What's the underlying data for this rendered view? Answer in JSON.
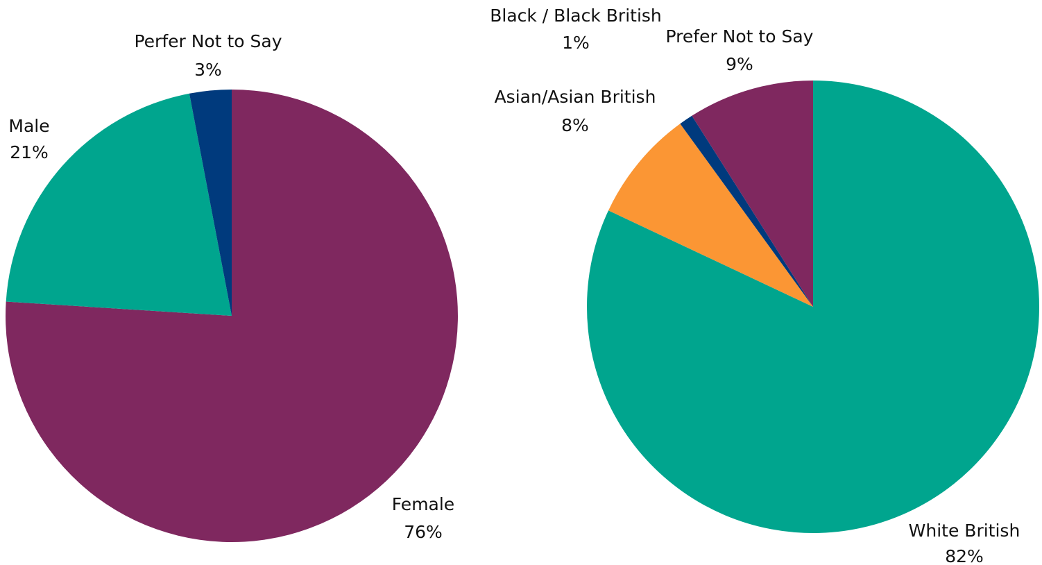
{
  "chart_data": [
    {
      "type": "pie",
      "slices": [
        {
          "label": "Female",
          "value": 76,
          "display": "76%",
          "color": "#7f285f"
        },
        {
          "label": "Male",
          "value": 21,
          "display": "21%",
          "color": "#00a58e"
        },
        {
          "label": "Perfer Not to Say",
          "value": 3,
          "display": "3%",
          "color": "#003a7d"
        }
      ],
      "start_angle": "12 o'clock",
      "direction": "clockwise",
      "legend": "none"
    },
    {
      "type": "pie",
      "slices": [
        {
          "label": "White British",
          "value": 82,
          "display": "82%",
          "color": "#00a58e"
        },
        {
          "label": "Asian/Asian British",
          "value": 8,
          "display": "8%",
          "color": "#fb9634"
        },
        {
          "label": "Black / Black British",
          "value": 1,
          "display": "1%",
          "color": "#003a7d"
        },
        {
          "label": "Prefer Not to Say",
          "value": 9,
          "display": "9%",
          "color": "#7f285f"
        }
      ],
      "start_angle": "12 o'clock",
      "direction": "clockwise",
      "legend": "none"
    }
  ]
}
